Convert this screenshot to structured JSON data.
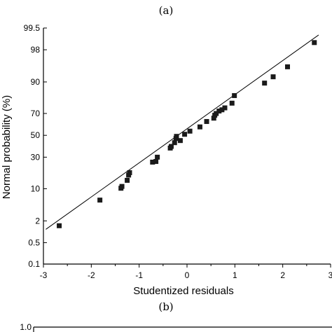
{
  "panel_labels": {
    "top": "(a)",
    "bottom": "(b)"
  },
  "bottom_axis_first_tick": "1.0",
  "chart_data": {
    "type": "scatter",
    "title": "",
    "xlabel": "Studentized residuals",
    "ylabel": "Normal probability (%)",
    "xlim": [
      -3,
      3
    ],
    "x_ticks": [
      -3,
      -2,
      -1,
      0,
      1,
      2,
      3
    ],
    "x_tick_labels": [
      "-3",
      "-2",
      "-1",
      "0",
      "1",
      "2",
      "3"
    ],
    "y_scale": "normal probability",
    "y_ticks": [
      0.1,
      0.5,
      2,
      10,
      30,
      50,
      70,
      90,
      98,
      99.5
    ],
    "y_tick_labels": [
      "0.1",
      "0.5",
      "2",
      "10",
      "30",
      "50",
      "70",
      "90",
      "98",
      "99.5"
    ],
    "grid": false,
    "marker": "square",
    "colors": {
      "marker": "#1a1a1a",
      "line": "#000000",
      "axis": "#000000"
    },
    "points": [
      {
        "x": -2.67,
        "y": 1.5
      },
      {
        "x": -1.82,
        "y": 6
      },
      {
        "x": -1.38,
        "y": 10.2
      },
      {
        "x": -1.36,
        "y": 11
      },
      {
        "x": -1.25,
        "y": 14
      },
      {
        "x": -1.22,
        "y": 17
      },
      {
        "x": -1.2,
        "y": 18.5
      },
      {
        "x": -0.72,
        "y": 26
      },
      {
        "x": -0.65,
        "y": 26.5
      },
      {
        "x": -0.62,
        "y": 30
      },
      {
        "x": -0.35,
        "y": 38
      },
      {
        "x": -0.33,
        "y": 39.5
      },
      {
        "x": -0.26,
        "y": 43
      },
      {
        "x": -0.23,
        "y": 47
      },
      {
        "x": -0.22,
        "y": 49
      },
      {
        "x": -0.14,
        "y": 45
      },
      {
        "x": -0.05,
        "y": 51
      },
      {
        "x": 0.06,
        "y": 54
      },
      {
        "x": 0.27,
        "y": 58
      },
      {
        "x": 0.41,
        "y": 63
      },
      {
        "x": 0.56,
        "y": 66
      },
      {
        "x": 0.58,
        "y": 68.5
      },
      {
        "x": 0.61,
        "y": 70
      },
      {
        "x": 0.67,
        "y": 72
      },
      {
        "x": 0.73,
        "y": 73
      },
      {
        "x": 0.79,
        "y": 74.5
      },
      {
        "x": 0.94,
        "y": 78
      },
      {
        "x": 0.99,
        "y": 83
      },
      {
        "x": 1.62,
        "y": 89.5
      },
      {
        "x": 1.8,
        "y": 92
      },
      {
        "x": 2.1,
        "y": 95
      },
      {
        "x": 2.66,
        "y": 98.7
      }
    ],
    "fit_line": {
      "x": [
        -2.95,
        2.75
      ],
      "y": [
        1.2,
        99.2
      ]
    }
  }
}
